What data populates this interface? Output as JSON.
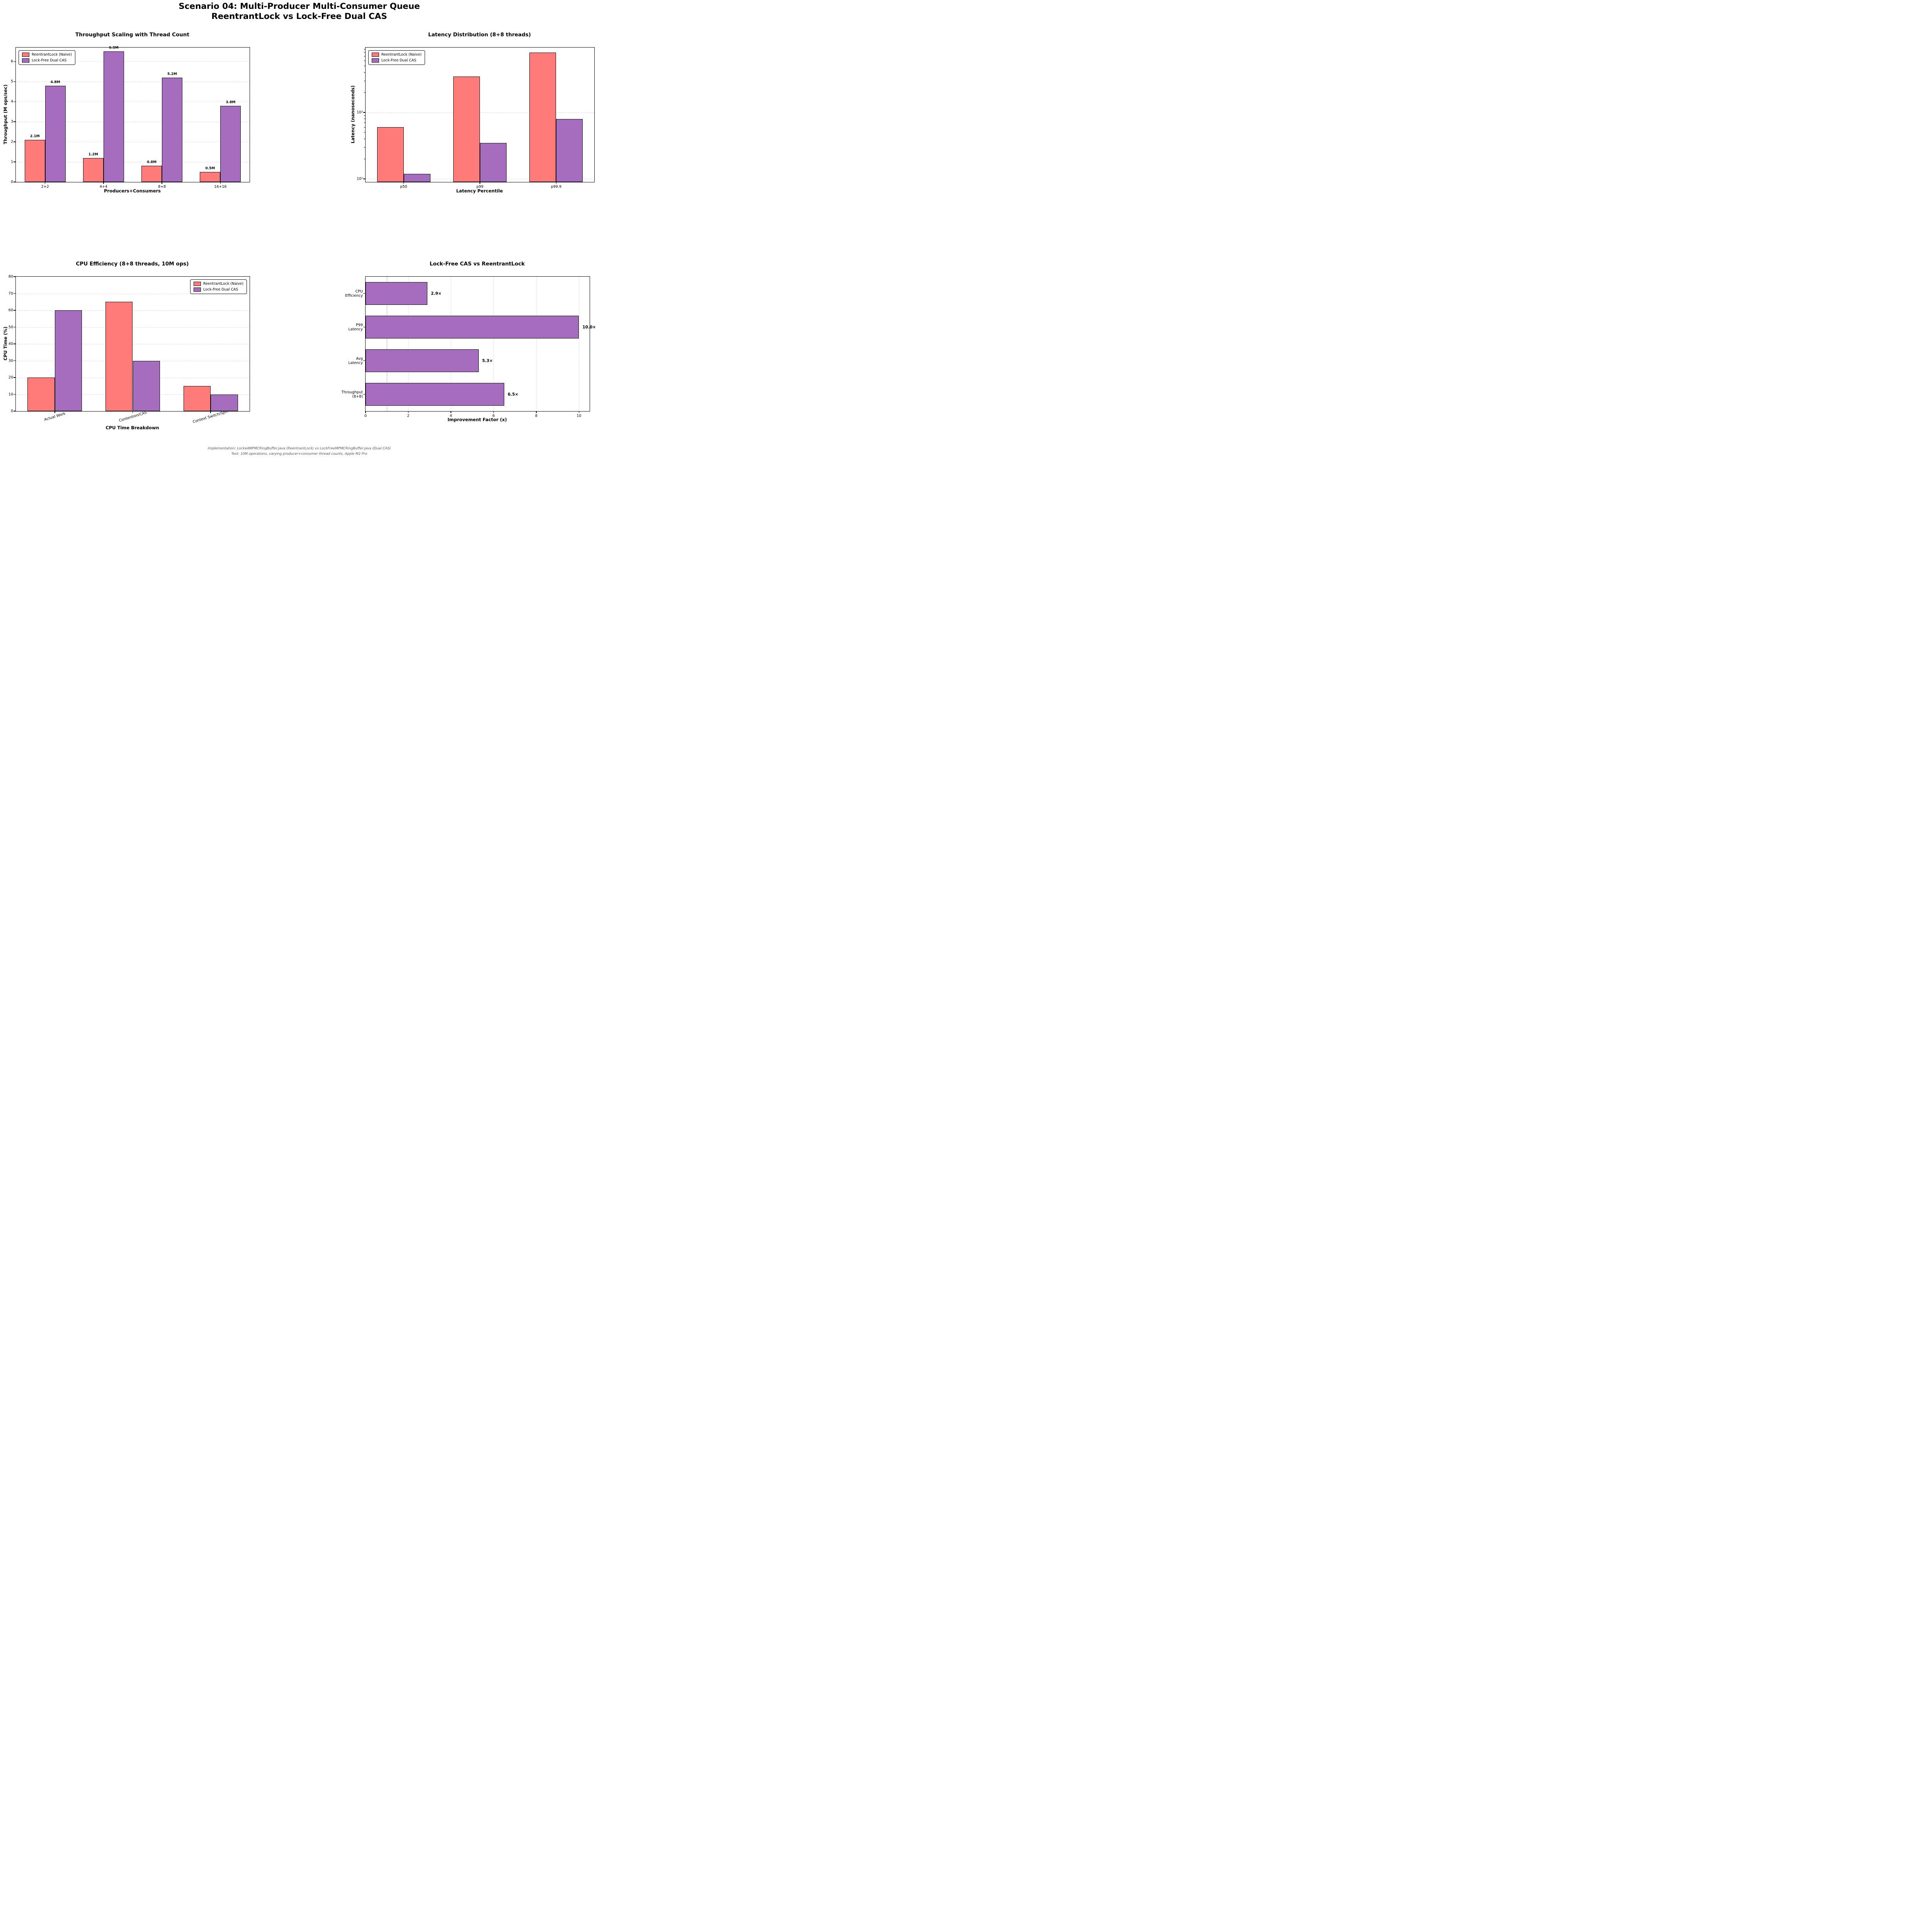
{
  "suptitle": {
    "line1": "Scenario 04: Multi-Producer Multi-Consumer Queue",
    "line2": "ReentrantLock vs Lock-Free Dual CAS"
  },
  "colors": {
    "reentrantlock": "#FF7B7A",
    "lockfree": "#A66CBE",
    "bar_edge": "#000000",
    "grid": "#d9d9d9",
    "reference_line": "#999999",
    "footer_text": "#555555"
  },
  "legend": {
    "entries": [
      {
        "label": "ReentrantLock (Naive)",
        "color": "#FF7B7A"
      },
      {
        "label": "Lock-Free Dual CAS",
        "color": "#A66CBE"
      }
    ]
  },
  "footer": {
    "line1": "Implementation: LockedMPMCRingBuffer.java (ReentrantLock) vs LockFreeMPMCRingBuffer.java (Dual CAS)",
    "line2": "Test: 10M operations, varying producer+consumer thread counts, Apple M2 Pro"
  },
  "chart_data": [
    {
      "type": "bar",
      "title": "Throughput Scaling with Thread Count",
      "xlabel": "Producers+Consumers",
      "ylabel": "Throughput (M ops/sec)",
      "categories": [
        "2+2",
        "4+4",
        "8+8",
        "16+16"
      ],
      "series": [
        {
          "name": "ReentrantLock (Naive)",
          "color": "#FF7B7A",
          "values": [
            2.1,
            1.2,
            0.8,
            0.5
          ],
          "value_labels": [
            "2.1M",
            "1.2M",
            "0.8M",
            "0.5M"
          ]
        },
        {
          "name": "Lock-Free Dual CAS",
          "color": "#A66CBE",
          "values": [
            4.8,
            6.5,
            5.2,
            3.8
          ],
          "value_labels": [
            "4.8M",
            "6.5M",
            "5.2M",
            "3.8M"
          ]
        }
      ],
      "ylim": [
        0,
        6.7
      ],
      "yticks": [
        0,
        1,
        2,
        3,
        4,
        5,
        6
      ],
      "grid": "horizontal-dashed",
      "legend_pos": "top-left"
    },
    {
      "type": "bar",
      "yscale": "log",
      "title": "Latency Distribution (8+8 threads)",
      "xlabel": "Latency Percentile",
      "ylabel": "Latency (nanoseconds)",
      "categories": [
        "p50",
        "p99",
        "p99.9"
      ],
      "series": [
        {
          "name": "ReentrantLock (Naive)",
          "color": "#FF7B7A",
          "values": [
            600,
            3500,
            8000
          ]
        },
        {
          "name": "Lock-Free Dual CAS",
          "color": "#A66CBE",
          "values": [
            120,
            350,
            800
          ]
        }
      ],
      "ylim": [
        90,
        9500
      ],
      "yticks": [
        100,
        1000
      ],
      "ytick_labels": [
        "10²",
        "10³"
      ],
      "grid": "horizontal-dashed",
      "legend_pos": "top-left"
    },
    {
      "type": "bar",
      "title": "CPU Efficiency (8+8 threads, 10M ops)",
      "xlabel": "CPU Time Breakdown",
      "ylabel": "CPU Time (%)",
      "categories": [
        "Actual Work",
        "Contention/CAS",
        "Context Switch/Spin"
      ],
      "xtick_rotation": -17,
      "series": [
        {
          "name": "ReentrantLock (Naive)",
          "color": "#FF7B7A",
          "values": [
            20,
            65,
            15
          ]
        },
        {
          "name": "Lock-Free Dual CAS",
          "color": "#A66CBE",
          "values": [
            60,
            30,
            10
          ]
        }
      ],
      "ylim": [
        0,
        80
      ],
      "yticks": [
        0,
        10,
        20,
        30,
        40,
        50,
        60,
        70,
        80
      ],
      "grid": "horizontal-dashed",
      "legend_pos": "top-right"
    },
    {
      "type": "barh",
      "title": "Lock-Free CAS vs ReentrantLock",
      "xlabel": "Improvement Factor (x)",
      "categories": [
        "CPU\nEfficiency",
        "P99 Latency",
        "Avg Latency",
        "Throughput\n(8+8)"
      ],
      "bar_color": "#A66CBE",
      "values": [
        2.9,
        10.0,
        5.3,
        6.5
      ],
      "value_labels": [
        "2.9×",
        "10.0×",
        "5.3×",
        "6.5×"
      ],
      "xlim": [
        0,
        10.5
      ],
      "xticks": [
        0,
        2,
        4,
        6,
        8,
        10
      ],
      "reference_line_x": 1,
      "grid": "vertical-dashed"
    }
  ]
}
